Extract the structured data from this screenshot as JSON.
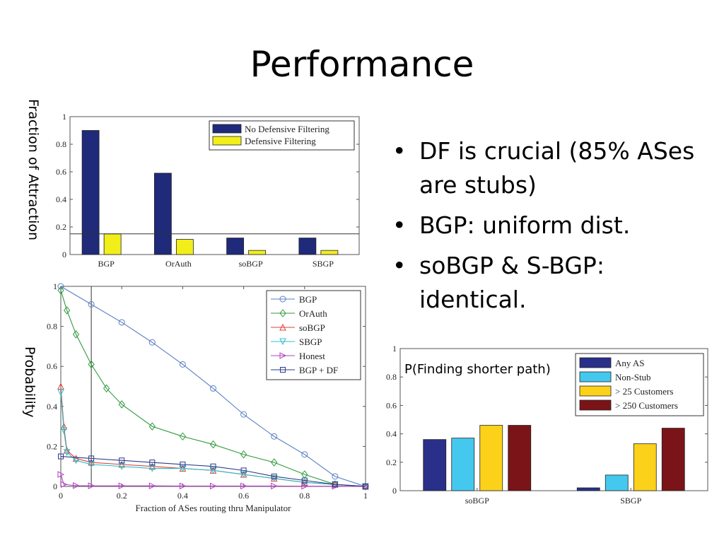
{
  "slide": {
    "title": "Performance",
    "bullets": [
      "DF is crucial (85% ASes are stubs)",
      "BGP: uniform dist.",
      "soBGP & S-BGP: identical."
    ]
  },
  "chart_data": [
    {
      "type": "bar",
      "ylabel": "Fraction of Attraction",
      "categories": [
        "BGP",
        "OrAuth",
        "soBGP",
        "SBGP"
      ],
      "ylim": [
        0,
        1
      ],
      "yticks": [
        "0",
        "0.2",
        "0.4",
        "0.6",
        "0.8",
        "1"
      ],
      "reference_line": 0.15,
      "legend_position": "top-right",
      "series": [
        {
          "name": "No Defensive Filtering",
          "color": "#1f2a7a",
          "values": [
            0.9,
            0.59,
            0.12,
            0.12
          ]
        },
        {
          "name": "Defensive Filtering",
          "color": "#f2ee1a",
          "values": [
            0.15,
            0.11,
            0.03,
            0.03
          ]
        }
      ]
    },
    {
      "type": "line",
      "xlabel": "Fraction of ASes routing thru Manipulator",
      "ylabel": "Probability",
      "xlim": [
        0,
        1
      ],
      "ylim": [
        0,
        1
      ],
      "xticks": [
        "0",
        "0.2",
        "0.4",
        "0.6",
        "0.8",
        "1"
      ],
      "yticks": [
        "0",
        "0.2",
        "0.4",
        "0.6",
        "0.8",
        "1"
      ],
      "vertical_line": 0.1,
      "legend_position": "top-right",
      "series": [
        {
          "name": "BGP",
          "color": "#5b7fc4",
          "marker": "circle",
          "x": [
            0,
            0.1,
            0.2,
            0.3,
            0.4,
            0.5,
            0.6,
            0.7,
            0.8,
            0.9,
            1
          ],
          "y": [
            1,
            0.91,
            0.82,
            0.72,
            0.61,
            0.49,
            0.36,
            0.25,
            0.16,
            0.05,
            0
          ]
        },
        {
          "name": "OrAuth",
          "color": "#2f9a3e",
          "marker": "diamond",
          "x": [
            0,
            0.02,
            0.05,
            0.1,
            0.15,
            0.2,
            0.3,
            0.4,
            0.5,
            0.6,
            0.7,
            0.8,
            0.9,
            1
          ],
          "y": [
            0.98,
            0.88,
            0.76,
            0.61,
            0.49,
            0.41,
            0.3,
            0.25,
            0.21,
            0.16,
            0.12,
            0.06,
            0.01,
            0
          ]
        },
        {
          "name": "soBGP",
          "color": "#e0403a",
          "marker": "triangle-up",
          "x": [
            0,
            0.01,
            0.02,
            0.05,
            0.1,
            0.2,
            0.3,
            0.4,
            0.5,
            0.6,
            0.7,
            0.8,
            0.9,
            1
          ],
          "y": [
            0.5,
            0.3,
            0.18,
            0.14,
            0.12,
            0.11,
            0.1,
            0.09,
            0.08,
            0.06,
            0.04,
            0.02,
            0.01,
            0
          ]
        },
        {
          "name": "SBGP",
          "color": "#2fc0c8",
          "marker": "triangle-down",
          "x": [
            0,
            0.01,
            0.02,
            0.05,
            0.1,
            0.2,
            0.3,
            0.4,
            0.5,
            0.6,
            0.7,
            0.8,
            0.9,
            1
          ],
          "y": [
            0.47,
            0.28,
            0.17,
            0.13,
            0.11,
            0.1,
            0.09,
            0.09,
            0.08,
            0.06,
            0.04,
            0.02,
            0.01,
            0
          ]
        },
        {
          "name": "Honest",
          "color": "#b042c0",
          "marker": "triangle-right",
          "x": [
            0,
            0.01,
            0.05,
            0.1,
            0.2,
            0.3,
            0.4,
            0.5,
            0.6,
            0.7,
            0.8,
            0.9,
            1
          ],
          "y": [
            0.06,
            0.01,
            0.004,
            0.003,
            0.003,
            0.003,
            0.002,
            0.002,
            0.002,
            0.002,
            0.001,
            0.001,
            0
          ]
        },
        {
          "name": "BGP + DF",
          "color": "#2a3a8a",
          "marker": "square",
          "x": [
            0,
            0.1,
            0.2,
            0.3,
            0.4,
            0.5,
            0.6,
            0.7,
            0.8,
            0.9,
            1
          ],
          "y": [
            0.15,
            0.14,
            0.13,
            0.12,
            0.11,
            0.1,
            0.08,
            0.05,
            0.03,
            0.01,
            0
          ]
        }
      ]
    },
    {
      "type": "bar",
      "annotation": "P(Finding shorter path)",
      "categories": [
        "soBGP",
        "SBGP"
      ],
      "ylim": [
        0,
        1
      ],
      "yticks": [
        "0",
        "0.2",
        "0.4",
        "0.6",
        "0.8",
        "1"
      ],
      "legend_position": "top-right",
      "series": [
        {
          "name": "Any AS",
          "color": "#2a2f8a",
          "values": [
            0.36,
            0.02
          ]
        },
        {
          "name": "Non-Stub",
          "color": "#45c8ee",
          "values": [
            0.37,
            0.11
          ]
        },
        {
          "name": "> 25 Customers",
          "color": "#fbd11a",
          "values": [
            0.46,
            0.33
          ]
        },
        {
          "name": "> 250 Customers",
          "color": "#7a1418",
          "values": [
            0.46,
            0.44
          ]
        }
      ]
    }
  ]
}
